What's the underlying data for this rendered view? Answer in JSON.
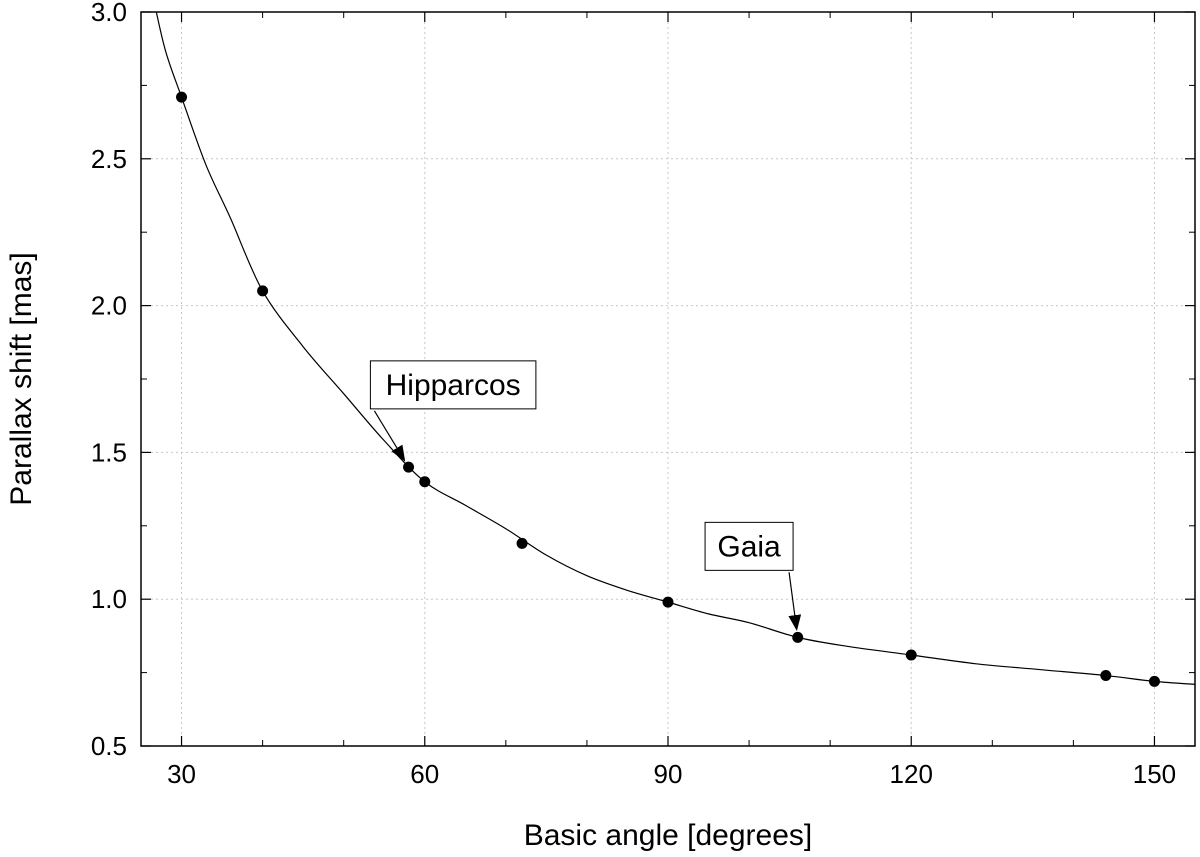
{
  "chart_data": {
    "type": "scatter",
    "title": "",
    "xlabel": "Basic angle [degrees]",
    "ylabel": "Parallax shift [mas]",
    "xlim": [
      25,
      155
    ],
    "ylim": [
      0.5,
      3.0
    ],
    "xticks": [
      30,
      60,
      90,
      120,
      150
    ],
    "xtick_labels": [
      "30",
      "60",
      "90",
      "120",
      "150"
    ],
    "yticks": [
      0.5,
      1.0,
      1.5,
      2.0,
      2.5,
      3.0
    ],
    "ytick_labels": [
      "0.5",
      "1.0",
      "1.5",
      "2.0",
      "2.5",
      "3.0"
    ],
    "x_minor_step": 10,
    "y_minor_step": 0.25,
    "grid": true,
    "series": [
      {
        "type": "scatter",
        "x": [
          30,
          40,
          58,
          60,
          72,
          90,
          106,
          120,
          144,
          150
        ],
        "y": [
          2.71,
          2.05,
          1.45,
          1.4,
          1.19,
          0.99,
          0.87,
          0.81,
          0.74,
          0.72
        ]
      },
      {
        "type": "line",
        "x": [
          26.5,
          28,
          30,
          33,
          36,
          40,
          45,
          50,
          55,
          60,
          65,
          70,
          75,
          80,
          85,
          90,
          95,
          100,
          106,
          112,
          120,
          128,
          136,
          144,
          150,
          155
        ],
        "y": [
          3.05,
          2.87,
          2.71,
          2.48,
          2.3,
          2.05,
          1.86,
          1.7,
          1.54,
          1.4,
          1.32,
          1.24,
          1.15,
          1.08,
          1.03,
          0.99,
          0.95,
          0.92,
          0.87,
          0.84,
          0.81,
          0.78,
          0.76,
          0.74,
          0.72,
          0.71
        ]
      }
    ],
    "annotations": [
      {
        "text": "Hipparcos",
        "point": [
          58,
          1.45
        ],
        "label_at": [
          63.5,
          1.73
        ]
      },
      {
        "text": "Gaia",
        "point": [
          106,
          0.87
        ],
        "label_at": [
          100,
          1.18
        ]
      }
    ]
  }
}
